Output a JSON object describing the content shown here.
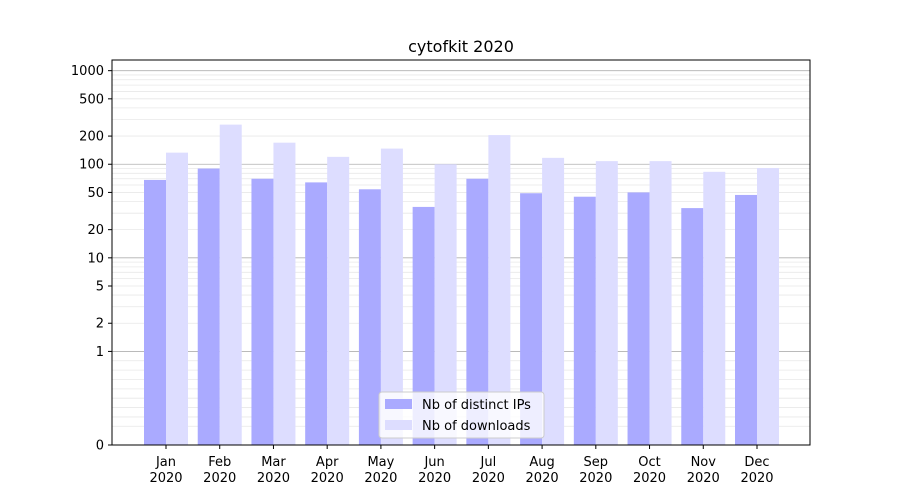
{
  "chart_data": {
    "type": "bar",
    "title": "cytofkit 2020",
    "xlabel": "",
    "ylabel": "",
    "yscale": "symlog",
    "categories": [
      [
        "Jan",
        "2020"
      ],
      [
        "Feb",
        "2020"
      ],
      [
        "Mar",
        "2020"
      ],
      [
        "Apr",
        "2020"
      ],
      [
        "May",
        "2020"
      ],
      [
        "Jun",
        "2020"
      ],
      [
        "Jul",
        "2020"
      ],
      [
        "Aug",
        "2020"
      ],
      [
        "Sep",
        "2020"
      ],
      [
        "Oct",
        "2020"
      ],
      [
        "Nov",
        "2020"
      ],
      [
        "Dec",
        "2020"
      ]
    ],
    "y_ticks": [
      "0",
      "1",
      "2",
      "5",
      "10",
      "20",
      "50",
      "100",
      "200",
      "500",
      "1000"
    ],
    "ylim": [
      0,
      1300
    ],
    "grid": true,
    "legend_position": "bottom-center",
    "series": [
      {
        "name": "Nb of distinct IPs",
        "color": "#aaaaff",
        "values": [
          68,
          90,
          70,
          64,
          54,
          35,
          70,
          49,
          45,
          50,
          34,
          47
        ]
      },
      {
        "name": "Nb of downloads",
        "color": "#ddddff",
        "values": [
          133,
          265,
          170,
          120,
          147,
          100,
          205,
          117,
          108,
          108,
          83,
          91
        ]
      }
    ]
  }
}
